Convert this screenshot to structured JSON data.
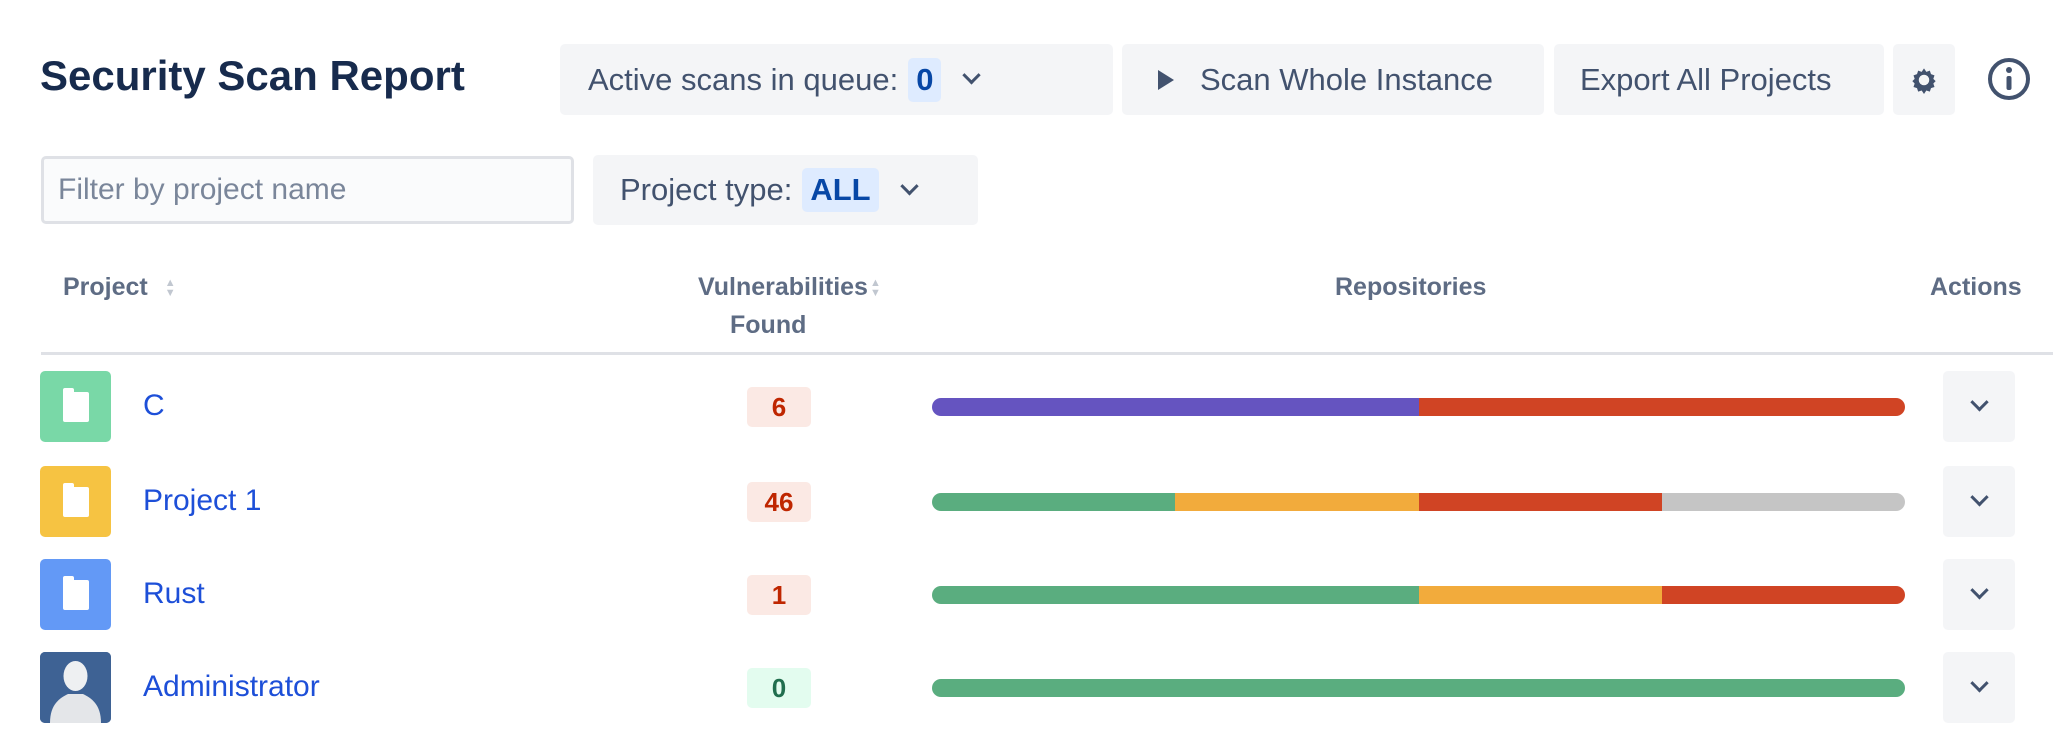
{
  "header": {
    "title": "Security Scan Report",
    "queue_label": "Active scans in queue:",
    "queue_count": "0",
    "scan_label": "Scan Whole Instance",
    "export_label": "Export All Projects"
  },
  "filters": {
    "search_placeholder": "Filter by project name",
    "search_value": "",
    "type_label": "Project type:",
    "type_value": "ALL"
  },
  "table": {
    "columns": [
      "Project",
      "Vulnerabilities",
      "Found",
      "Repositories",
      "Actions"
    ],
    "rows": [
      {
        "name": "C",
        "icon": "folder-icon",
        "icon_color": "#79d8a7",
        "vulns": "6",
        "severity": "danger",
        "repos": [
          {
            "color": "#6554c0",
            "fraction": 0.5
          },
          {
            "color": "#d04424",
            "fraction": 0.5
          }
        ]
      },
      {
        "name": "Project 1",
        "icon": "folder-icon",
        "icon_color": "#f6c342",
        "vulns": "46",
        "severity": "danger",
        "repos": [
          {
            "color": "#5aad7f",
            "fraction": 0.25
          },
          {
            "color": "#f2ab3c",
            "fraction": 0.25
          },
          {
            "color": "#d04424",
            "fraction": 0.25
          },
          {
            "color": "#c5c5c5",
            "fraction": 0.25
          }
        ]
      },
      {
        "name": "Rust",
        "icon": "folder-icon",
        "icon_color": "#6399f6",
        "vulns": "1",
        "severity": "danger",
        "repos": [
          {
            "color": "#5aad7f",
            "fraction": 0.5
          },
          {
            "color": "#f2ab3c",
            "fraction": 0.25
          },
          {
            "color": "#d04424",
            "fraction": 0.25
          }
        ]
      },
      {
        "name": "Administrator",
        "icon": "user-avatar-icon",
        "icon_color": "#3e6294",
        "vulns": "0",
        "severity": "ok",
        "repos": [
          {
            "color": "#5aad7f",
            "fraction": 1.0
          }
        ]
      }
    ]
  },
  "colors": {
    "danger_bg": "#fbe9e4",
    "danger_text": "#bf2600",
    "ok_bg": "#e3fcef",
    "ok_text": "#216e4e",
    "link": "#1d4fd8"
  }
}
